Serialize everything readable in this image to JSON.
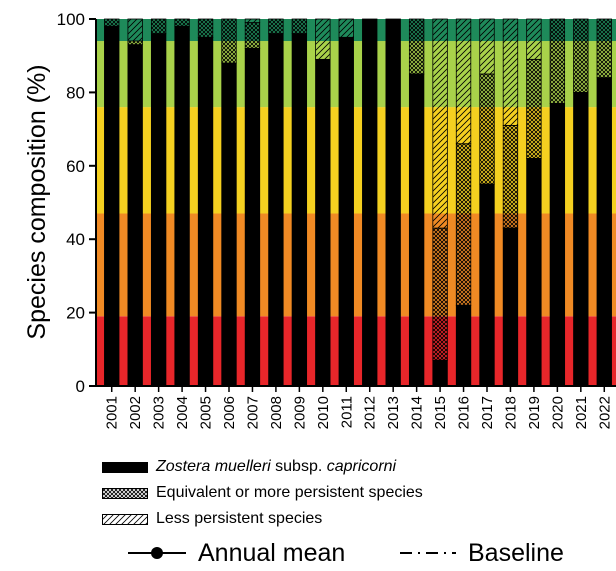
{
  "chart_data": {
    "type": "bar",
    "stacked": true,
    "ylabel": "Species composition (%)",
    "ylim": [
      0,
      100
    ],
    "yticks": [
      "0",
      "20",
      "40",
      "60",
      "80",
      "100"
    ],
    "categories": [
      "2001",
      "2002",
      "2003",
      "2004",
      "2005",
      "2006",
      "2007",
      "2008",
      "2009",
      "2010",
      "2011",
      "2012",
      "2013",
      "2014",
      "2015",
      "2016",
      "2017",
      "2018",
      "2019",
      "2020",
      "2021",
      "2022"
    ],
    "background_bands": [
      {
        "from": 0,
        "to": 19,
        "color": "#e8262a"
      },
      {
        "from": 19,
        "to": 47,
        "color": "#f08a24"
      },
      {
        "from": 47,
        "to": 76,
        "color": "#f5d020"
      },
      {
        "from": 76,
        "to": 94,
        "color": "#a9d24a"
      },
      {
        "from": 94,
        "to": 100,
        "color": "#1e8a5a"
      }
    ],
    "series": [
      {
        "name": "Zostera muelleri subsp. capricorni",
        "fill": "solid",
        "values": [
          98,
          93,
          96,
          98,
          95,
          88,
          92,
          96,
          96,
          89,
          95,
          100,
          100,
          85,
          7,
          22,
          55,
          43,
          62,
          77,
          80,
          84
        ]
      },
      {
        "name": "Equivalent or more persistent species",
        "fill": "crosshatch",
        "values": [
          2,
          1,
          4,
          2,
          5,
          12,
          7,
          4,
          4,
          0,
          0,
          0,
          0,
          15,
          36,
          44,
          30,
          28,
          27,
          23,
          20,
          16
        ]
      },
      {
        "name": "Less persistent species",
        "fill": "diagonal",
        "values": [
          0,
          6,
          0,
          0,
          0,
          0,
          1,
          0,
          0,
          11,
          5,
          0,
          0,
          0,
          57,
          34,
          15,
          29,
          11,
          0,
          0,
          0
        ]
      }
    ]
  },
  "legend": {
    "zostera_italic": "Zostera muelleri",
    "zostera_mid": " subsp. ",
    "zostera_italic2": "capricorni",
    "equivalent": "Equivalent or more persistent species",
    "less": "Less persistent species",
    "annual_mean": "Annual mean",
    "baseline": "Baseline"
  }
}
